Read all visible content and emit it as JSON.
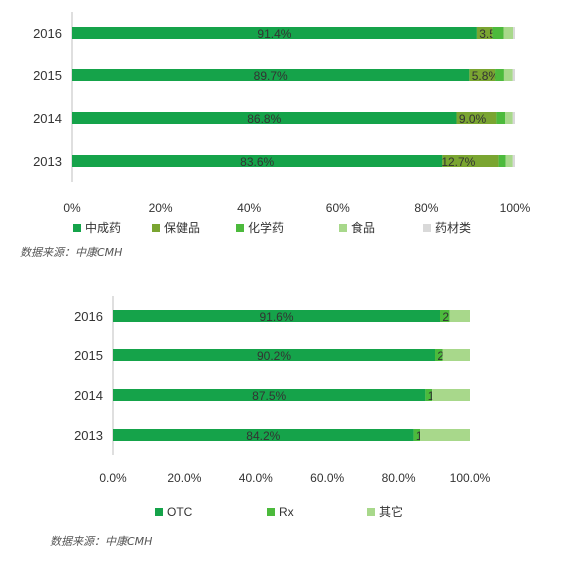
{
  "chart_data": [
    {
      "type": "bar",
      "orientation": "horizontal",
      "stacked": true,
      "categories": [
        "2016",
        "2015",
        "2014",
        "2013"
      ],
      "series": [
        {
          "name": "中成药",
          "values": [
            91.4,
            89.7,
            86.8,
            83.6
          ],
          "color": "#15a34a",
          "labels": [
            "91.4%",
            "89.7%",
            "86.8%",
            "83.6%"
          ]
        },
        {
          "name": "保健品",
          "values": [
            3.5,
            5.8,
            9.0,
            12.7
          ],
          "color": "#7aa531",
          "labels": [
            "3.5%",
            "5.8%",
            "9.0%",
            "12.7%"
          ]
        },
        {
          "name": "化学药",
          "values": [
            2.5,
            2.0,
            2.0,
            1.6
          ],
          "color": "#4cba3c",
          "labels": []
        },
        {
          "name": "食品",
          "values": [
            2.2,
            2.0,
            1.7,
            1.6
          ],
          "color": "#a8d88b",
          "labels": []
        },
        {
          "name": "药材类",
          "values": [
            0.4,
            0.5,
            0.5,
            0.5
          ],
          "color": "#d9d9d9",
          "labels": []
        }
      ],
      "x_ticks": [
        "0%",
        "20%",
        "40%",
        "60%",
        "80%",
        "100%"
      ],
      "xlim": [
        0,
        100
      ],
      "grid": false,
      "legend_position": "bottom",
      "source": "数据来源：中康CMH"
    },
    {
      "type": "bar",
      "orientation": "horizontal",
      "stacked": true,
      "categories": [
        "2016",
        "2015",
        "2014",
        "2013"
      ],
      "series": [
        {
          "name": "OTC",
          "values": [
            91.6,
            90.2,
            87.5,
            84.2
          ],
          "color": "#15a34a",
          "labels": [
            "91.6%",
            "90.2%",
            "87.5%",
            "84.2%"
          ]
        },
        {
          "name": "Rx",
          "values": [
            2.7,
            2.1,
            1.9,
            1.8
          ],
          "color": "#4cba3c",
          "labels": [
            "2.7%",
            "2.1%",
            "1.9%",
            "1.8%"
          ]
        },
        {
          "name": "其它",
          "values": [
            5.7,
            7.7,
            10.6,
            14.0
          ],
          "color": "#a8d88b",
          "labels": []
        }
      ],
      "x_ticks": [
        "0.0%",
        "20.0%",
        "40.0%",
        "60.0%",
        "80.0%",
        "100.0%"
      ],
      "xlim": [
        0,
        100
      ],
      "grid": false,
      "legend_position": "bottom",
      "source": "数据来源：中康CMH"
    }
  ]
}
